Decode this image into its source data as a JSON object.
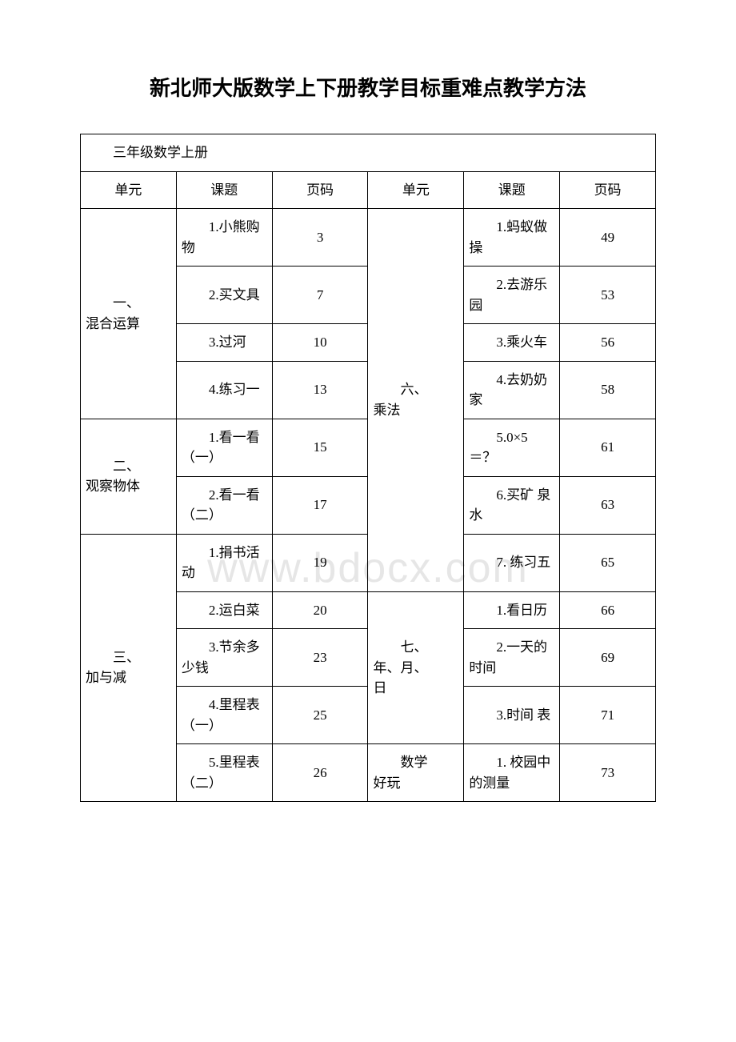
{
  "title": "新北师大版数学上下册教学目标重难点教学方法",
  "table_caption": "三年级数学上册",
  "headers": [
    "单元",
    "课题",
    "页码",
    "单元",
    "课题",
    "页码"
  ],
  "watermark": "www.bdocx.com",
  "left_units": [
    {
      "name_lines": [
        "一、",
        "混合运算"
      ],
      "rowspan": 4
    },
    {
      "name_lines": [
        "二、",
        "观察物体"
      ],
      "rowspan": 2
    },
    {
      "name_lines": [
        "三、",
        "加与减"
      ],
      "rowspan": 5
    }
  ],
  "left_rows": [
    {
      "topic": "1.小熊购物",
      "page": "3"
    },
    {
      "topic": "2.买文具",
      "page": "7"
    },
    {
      "topic": "3.过河",
      "page": "10"
    },
    {
      "topic": "4.练习一",
      "page": "13"
    },
    {
      "topic": "1.看一看（一）",
      "page": "15"
    },
    {
      "topic": "2.看一看（二）",
      "page": "17"
    },
    {
      "topic": "1.捐书活动",
      "page": "19"
    },
    {
      "topic": "2.运白菜",
      "page": "20"
    },
    {
      "topic": "3.节余多少钱",
      "page": "23"
    },
    {
      "topic": "4.里程表（一）",
      "page": "25"
    },
    {
      "topic": "5.里程表（二）",
      "page": "26"
    }
  ],
  "right_units": [
    {
      "name_lines": [
        "六、",
        "乘法"
      ],
      "rowspan": 7
    },
    {
      "name_lines": [
        "七、",
        "年、月、",
        "日"
      ],
      "rowspan": 3
    },
    {
      "name_lines": [
        "数学",
        "好玩"
      ],
      "rowspan": 1
    }
  ],
  "right_rows": [
    {
      "topic": "1.蚂蚁做操",
      "page": "49"
    },
    {
      "topic": "2.去游乐园",
      "page": "53"
    },
    {
      "topic": "3.乘火车",
      "page": "56"
    },
    {
      "topic": "4.去奶奶家",
      "page": "58"
    },
    {
      "topic": "5.0×5＝？",
      "page": "61"
    },
    {
      "topic": "6.买矿 泉 水",
      "page": "63"
    },
    {
      "topic": "7. 练习五",
      "page": "65"
    },
    {
      "topic": "1.看日历",
      "page": "66"
    },
    {
      "topic": "2.一天的时间",
      "page": "69"
    },
    {
      "topic": "3.时间 表",
      "page": "71"
    },
    {
      "topic": "1. 校园中的测量",
      "page": "73"
    }
  ],
  "colors": {
    "text": "#000000",
    "border": "#000000",
    "background": "#ffffff",
    "watermark": "#e6e6e6"
  }
}
